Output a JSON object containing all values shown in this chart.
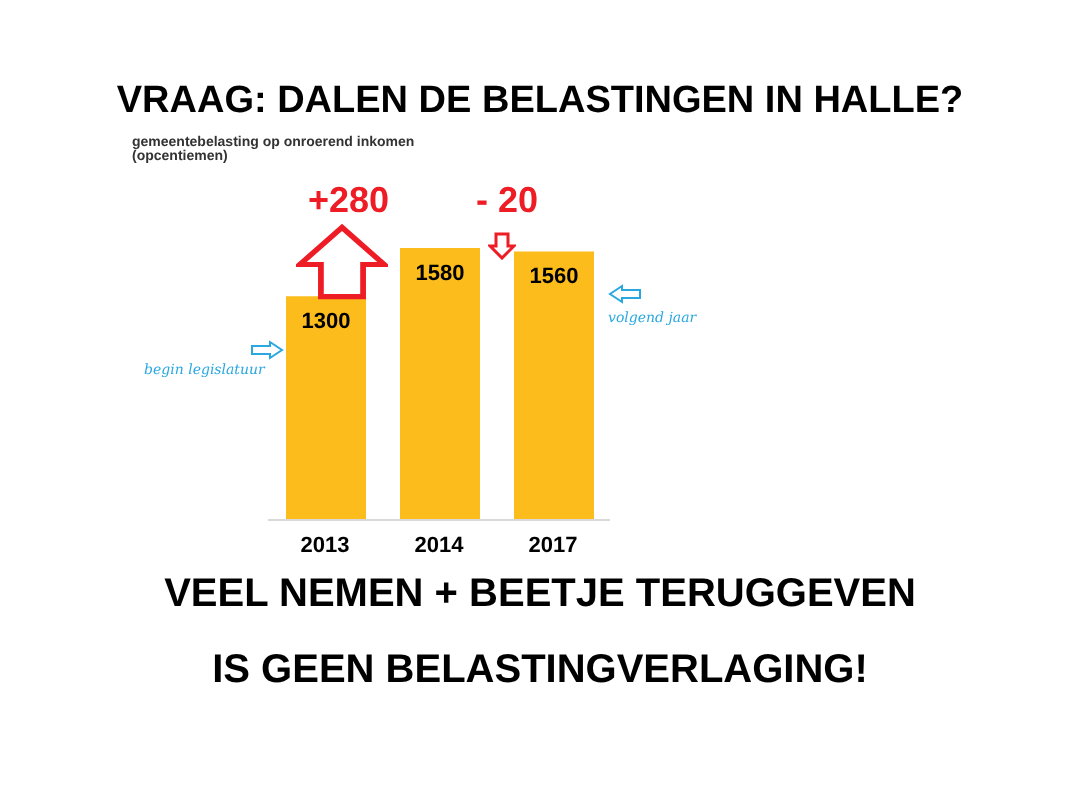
{
  "chart_data": {
    "type": "bar",
    "title": "VRAAG: DALEN DE BELASTINGEN IN HALLE?",
    "subtitle": "gemeentebelasting op onroerend inkomen (opcentiemen)",
    "categories": [
      "2013",
      "2014",
      "2017"
    ],
    "values": [
      1300,
      1580,
      1560
    ],
    "color": "#fbbc1c",
    "data_labels": true,
    "grid": false,
    "legend": false,
    "annotations": [
      "+280",
      "- 20",
      "begin legislatuur",
      "volgend jaar",
      "VEEL NEMEN + BEETJE TERUGGEVEN",
      "IS GEEN BELASTINGVERLAGING!"
    ]
  }
}
